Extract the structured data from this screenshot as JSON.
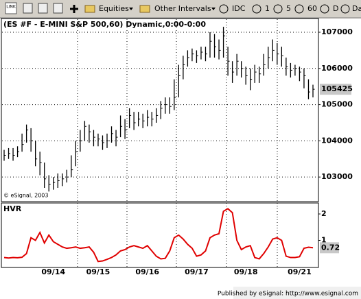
{
  "toolbar": {
    "link": "LINK",
    "items": [
      "Equities",
      "Other Intervals",
      "IDC",
      "1",
      "5",
      "60",
      "D",
      "Dai"
    ]
  },
  "footer": "Published by eSignal: http://www.esignal.com",
  "chart_data": [
    {
      "type": "ohlc",
      "title": "(ES #F - E-MINI S&P 500,60) Dynamic,0:00-0:00",
      "annotation": "© eSignal, 2003",
      "categories": [
        null,
        null,
        null,
        null,
        null,
        null,
        null,
        null,
        null,
        null,
        null,
        "09/14",
        null,
        null,
        null,
        null,
        null,
        null,
        null,
        null,
        null,
        "09/15",
        null,
        null,
        null,
        null,
        null,
        null,
        null,
        null,
        null,
        null,
        "09/16",
        null,
        null,
        null,
        null,
        null,
        null,
        null,
        null,
        null,
        null,
        "09/17",
        null,
        null,
        null,
        null,
        null,
        null,
        null,
        null,
        null,
        null,
        "09/18",
        null,
        null,
        null,
        null,
        null,
        null,
        null,
        null,
        null,
        null,
        null,
        "09/21",
        null,
        null,
        null
      ],
      "high": [
        103750,
        103800,
        103800,
        103850,
        104200,
        104450,
        104350,
        104000,
        103700,
        103400,
        103050,
        103000,
        103100,
        103100,
        103200,
        103600,
        104000,
        104300,
        104550,
        104450,
        104300,
        104200,
        104150,
        104200,
        104400,
        104300,
        104700,
        104600,
        104900,
        104800,
        104800,
        104750,
        104850,
        104800,
        104900,
        105100,
        105200,
        105200,
        105700,
        106100,
        106350,
        106500,
        106550,
        106500,
        106600,
        106600,
        107000,
        106950,
        106800,
        107150,
        106600,
        106200,
        106400,
        106200,
        106050,
        106000,
        106100,
        106050,
        106400,
        106600,
        106800,
        106700,
        106600,
        106300,
        106150,
        106100,
        106050,
        106000,
        105700,
        105550
      ],
      "low": [
        103450,
        103500,
        103450,
        103550,
        103700,
        103950,
        103700,
        103300,
        103050,
        102700,
        102600,
        102650,
        102700,
        102750,
        102850,
        103000,
        103300,
        103700,
        104000,
        103950,
        103850,
        103850,
        103750,
        103800,
        103950,
        103850,
        104100,
        104050,
        104350,
        104300,
        104400,
        104350,
        104400,
        104400,
        104500,
        104600,
        104750,
        104750,
        104850,
        105200,
        105700,
        106050,
        106200,
        106150,
        106250,
        106200,
        106300,
        106300,
        106250,
        106300,
        105800,
        105600,
        105800,
        105750,
        105550,
        105400,
        105600,
        105600,
        105800,
        106000,
        106200,
        106100,
        106050,
        105800,
        105750,
        105800,
        105650,
        105450,
        105150,
        105200
      ],
      "close": [
        103600,
        103650,
        103600,
        103700,
        103900,
        104300,
        104000,
        103500,
        103400,
        102950,
        102800,
        102850,
        102900,
        102950,
        103000,
        103200,
        103700,
        104000,
        104400,
        104250,
        104100,
        104050,
        103950,
        104000,
        104200,
        104100,
        104400,
        104300,
        104700,
        104500,
        104600,
        104550,
        104650,
        104600,
        104700,
        104900,
        105000,
        104950,
        105200,
        105800,
        106100,
        106300,
        106400,
        106350,
        106450,
        106400,
        106750,
        106600,
        106500,
        106900,
        106200,
        105900,
        106200,
        106000,
        105800,
        105700,
        105900,
        105850,
        106100,
        106300,
        106500,
        106400,
        106350,
        106050,
        105950,
        106000,
        105900,
        105800,
        105350,
        105425
      ],
      "color": "#000000",
      "ylim": [
        102340,
        107360
      ],
      "yticks": [
        103000,
        104000,
        105000,
        106000,
        107000
      ],
      "grid": true
    },
    {
      "type": "line",
      "title": "HVR",
      "color": "#e00000",
      "values": [
        0.35,
        0.33,
        0.35,
        0.34,
        0.36,
        0.5,
        1.1,
        1.0,
        1.3,
        0.9,
        1.2,
        0.95,
        0.85,
        0.75,
        0.7,
        0.72,
        0.75,
        0.7,
        0.72,
        0.75,
        0.55,
        0.2,
        0.22,
        0.28,
        0.35,
        0.45,
        0.6,
        0.65,
        0.75,
        0.8,
        0.75,
        0.7,
        0.8,
        0.6,
        0.4,
        0.3,
        0.32,
        0.6,
        1.1,
        1.2,
        1.05,
        0.85,
        0.7,
        0.4,
        0.45,
        0.6,
        1.1,
        1.2,
        1.25,
        2.1,
        2.2,
        2.05,
        1.0,
        0.65,
        0.75,
        0.8,
        0.35,
        0.3,
        0.5,
        0.75,
        1.05,
        1.1,
        1.0,
        0.4,
        0.35,
        0.35,
        0.38,
        0.7,
        0.74,
        0.72
      ],
      "ylim": [
        0,
        2.39
      ],
      "yticks": [
        1,
        2
      ],
      "grid": false
    }
  ]
}
